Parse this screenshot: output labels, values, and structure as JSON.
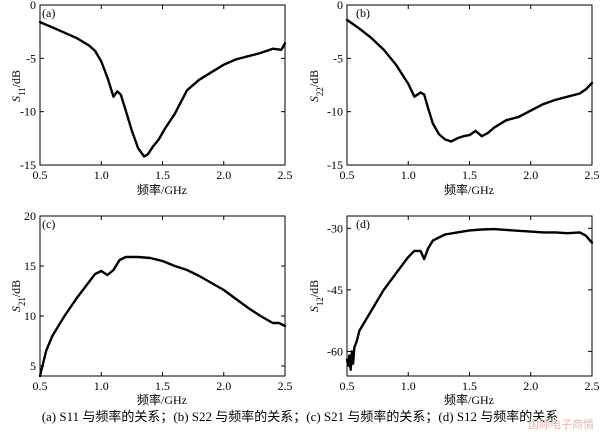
{
  "caption": "(a) S11 与频率的关系；(b) S22 与频率的关系；(c) S21 与频率的关系；(d) S12 与频率的关系",
  "watermark": "国际电子商情",
  "chart_data": [
    {
      "type": "line",
      "tag": "(a)",
      "ylabel_sym": "S",
      "ylabel_sub": "11",
      "ylabel_unit": "/dB",
      "xlabel": "频率/GHz",
      "xlim": [
        0.5,
        2.5
      ],
      "ylim": [
        -15,
        0
      ],
      "xticks": [
        0.5,
        1.0,
        1.5,
        2.0,
        2.5
      ],
      "xticklabels": [
        "0.5",
        "1.0",
        "1.5",
        "2.0",
        "2.5"
      ],
      "yticks": [
        0,
        -5,
        -10,
        -15
      ],
      "yticklabels": [
        "0",
        "-5",
        "-10",
        "-15"
      ],
      "x": [
        0.5,
        0.6,
        0.7,
        0.8,
        0.9,
        0.95,
        1.0,
        1.05,
        1.1,
        1.13,
        1.16,
        1.2,
        1.25,
        1.3,
        1.35,
        1.38,
        1.42,
        1.47,
        1.52,
        1.6,
        1.7,
        1.8,
        1.9,
        2.0,
        2.1,
        2.2,
        2.3,
        2.4,
        2.47,
        2.5
      ],
      "y": [
        -1.6,
        -2.1,
        -2.6,
        -3.1,
        -3.8,
        -4.3,
        -5.3,
        -6.8,
        -8.6,
        -8.1,
        -8.4,
        -9.9,
        -11.8,
        -13.4,
        -14.2,
        -14.0,
        -13.3,
        -12.6,
        -11.6,
        -10.2,
        -8.0,
        -7.0,
        -6.3,
        -5.6,
        -5.1,
        -4.8,
        -4.5,
        -4.1,
        -4.2,
        -3.6
      ]
    },
    {
      "type": "line",
      "tag": "(b)",
      "ylabel_sym": "S",
      "ylabel_sub": "22",
      "ylabel_unit": "/dB",
      "xlabel": "频率/GHz",
      "xlim": [
        0.5,
        2.5
      ],
      "ylim": [
        -15,
        0
      ],
      "xticks": [
        0.5,
        1.0,
        1.5,
        2.0,
        2.5
      ],
      "xticklabels": [
        "0.5",
        "1.0",
        "1.5",
        "2.0",
        "2.5"
      ],
      "yticks": [
        0,
        -5,
        -10,
        -15
      ],
      "yticklabels": [
        "0",
        "-5",
        "-10",
        "-15"
      ],
      "x": [
        0.5,
        0.6,
        0.7,
        0.8,
        0.9,
        1.0,
        1.05,
        1.1,
        1.13,
        1.16,
        1.2,
        1.25,
        1.3,
        1.35,
        1.4,
        1.45,
        1.5,
        1.55,
        1.6,
        1.65,
        1.7,
        1.8,
        1.9,
        2.0,
        2.1,
        2.2,
        2.3,
        2.4,
        2.45,
        2.5
      ],
      "y": [
        -1.4,
        -2.2,
        -3.1,
        -4.2,
        -5.6,
        -7.4,
        -8.6,
        -8.2,
        -8.4,
        -9.6,
        -11.1,
        -12.1,
        -12.6,
        -12.8,
        -12.5,
        -12.3,
        -12.2,
        -11.8,
        -12.3,
        -12.0,
        -11.5,
        -10.8,
        -10.5,
        -9.9,
        -9.3,
        -8.9,
        -8.6,
        -8.3,
        -7.9,
        -7.3
      ]
    },
    {
      "type": "line",
      "tag": "(c)",
      "ylabel_sym": "S",
      "ylabel_sub": "21",
      "ylabel_unit": "/dB",
      "xlabel": "频率/GHz",
      "xlim": [
        0.5,
        2.5
      ],
      "ylim": [
        4,
        20
      ],
      "xticks": [
        0.5,
        1.0,
        1.5,
        2.0,
        2.5
      ],
      "xticklabels": [
        "0.5",
        "1.0",
        "1.5",
        "2.0",
        "2.5"
      ],
      "yticks": [
        5,
        10,
        15,
        20
      ],
      "yticklabels": [
        "5",
        "10",
        "15",
        "20"
      ],
      "x": [
        0.5,
        0.55,
        0.6,
        0.7,
        0.8,
        0.9,
        0.95,
        1.0,
        1.05,
        1.1,
        1.15,
        1.2,
        1.3,
        1.4,
        1.5,
        1.6,
        1.7,
        1.8,
        1.9,
        2.0,
        2.1,
        2.2,
        2.3,
        2.4,
        2.45,
        2.5
      ],
      "y": [
        4.0,
        6.5,
        8.0,
        10.0,
        11.8,
        13.4,
        14.2,
        14.5,
        14.1,
        14.6,
        15.6,
        15.9,
        15.9,
        15.8,
        15.5,
        15.0,
        14.6,
        14.0,
        13.3,
        12.6,
        11.7,
        10.8,
        10.0,
        9.3,
        9.3,
        9.0
      ]
    },
    {
      "type": "line",
      "tag": "(d)",
      "ylabel_sym": "S",
      "ylabel_sub": "12",
      "ylabel_unit": "/dB",
      "xlabel": "频率/GHz",
      "xlim": [
        0.5,
        2.5
      ],
      "ylim": [
        -66,
        -27
      ],
      "xticks": [
        0.5,
        1.0,
        1.5,
        2.0,
        2.5
      ],
      "xticklabels": [
        "0.5",
        "1.0",
        "1.5",
        "2.0",
        "2.5"
      ],
      "yticks": [
        -30,
        -45,
        -60
      ],
      "yticklabels": [
        "-30",
        "-45",
        "-60"
      ],
      "x": [
        0.5,
        0.51,
        0.52,
        0.53,
        0.54,
        0.55,
        0.56,
        0.58,
        0.6,
        0.65,
        0.7,
        0.75,
        0.8,
        0.85,
        0.9,
        0.95,
        1.0,
        1.05,
        1.1,
        1.13,
        1.16,
        1.2,
        1.3,
        1.4,
        1.5,
        1.6,
        1.7,
        1.8,
        1.9,
        2.0,
        2.1,
        2.2,
        2.3,
        2.4,
        2.45,
        2.5
      ],
      "y": [
        -62,
        -63.5,
        -61,
        -64.5,
        -60,
        -63,
        -59,
        -57.5,
        -55,
        -52.5,
        -50,
        -47.5,
        -45,
        -43,
        -41,
        -39,
        -37,
        -35.5,
        -35.5,
        -37.5,
        -35,
        -33,
        -31.5,
        -31,
        -30.5,
        -30.3,
        -30.2,
        -30.4,
        -30.6,
        -30.8,
        -31.0,
        -31.0,
        -31.2,
        -31.0,
        -31.8,
        -33.5
      ]
    }
  ]
}
